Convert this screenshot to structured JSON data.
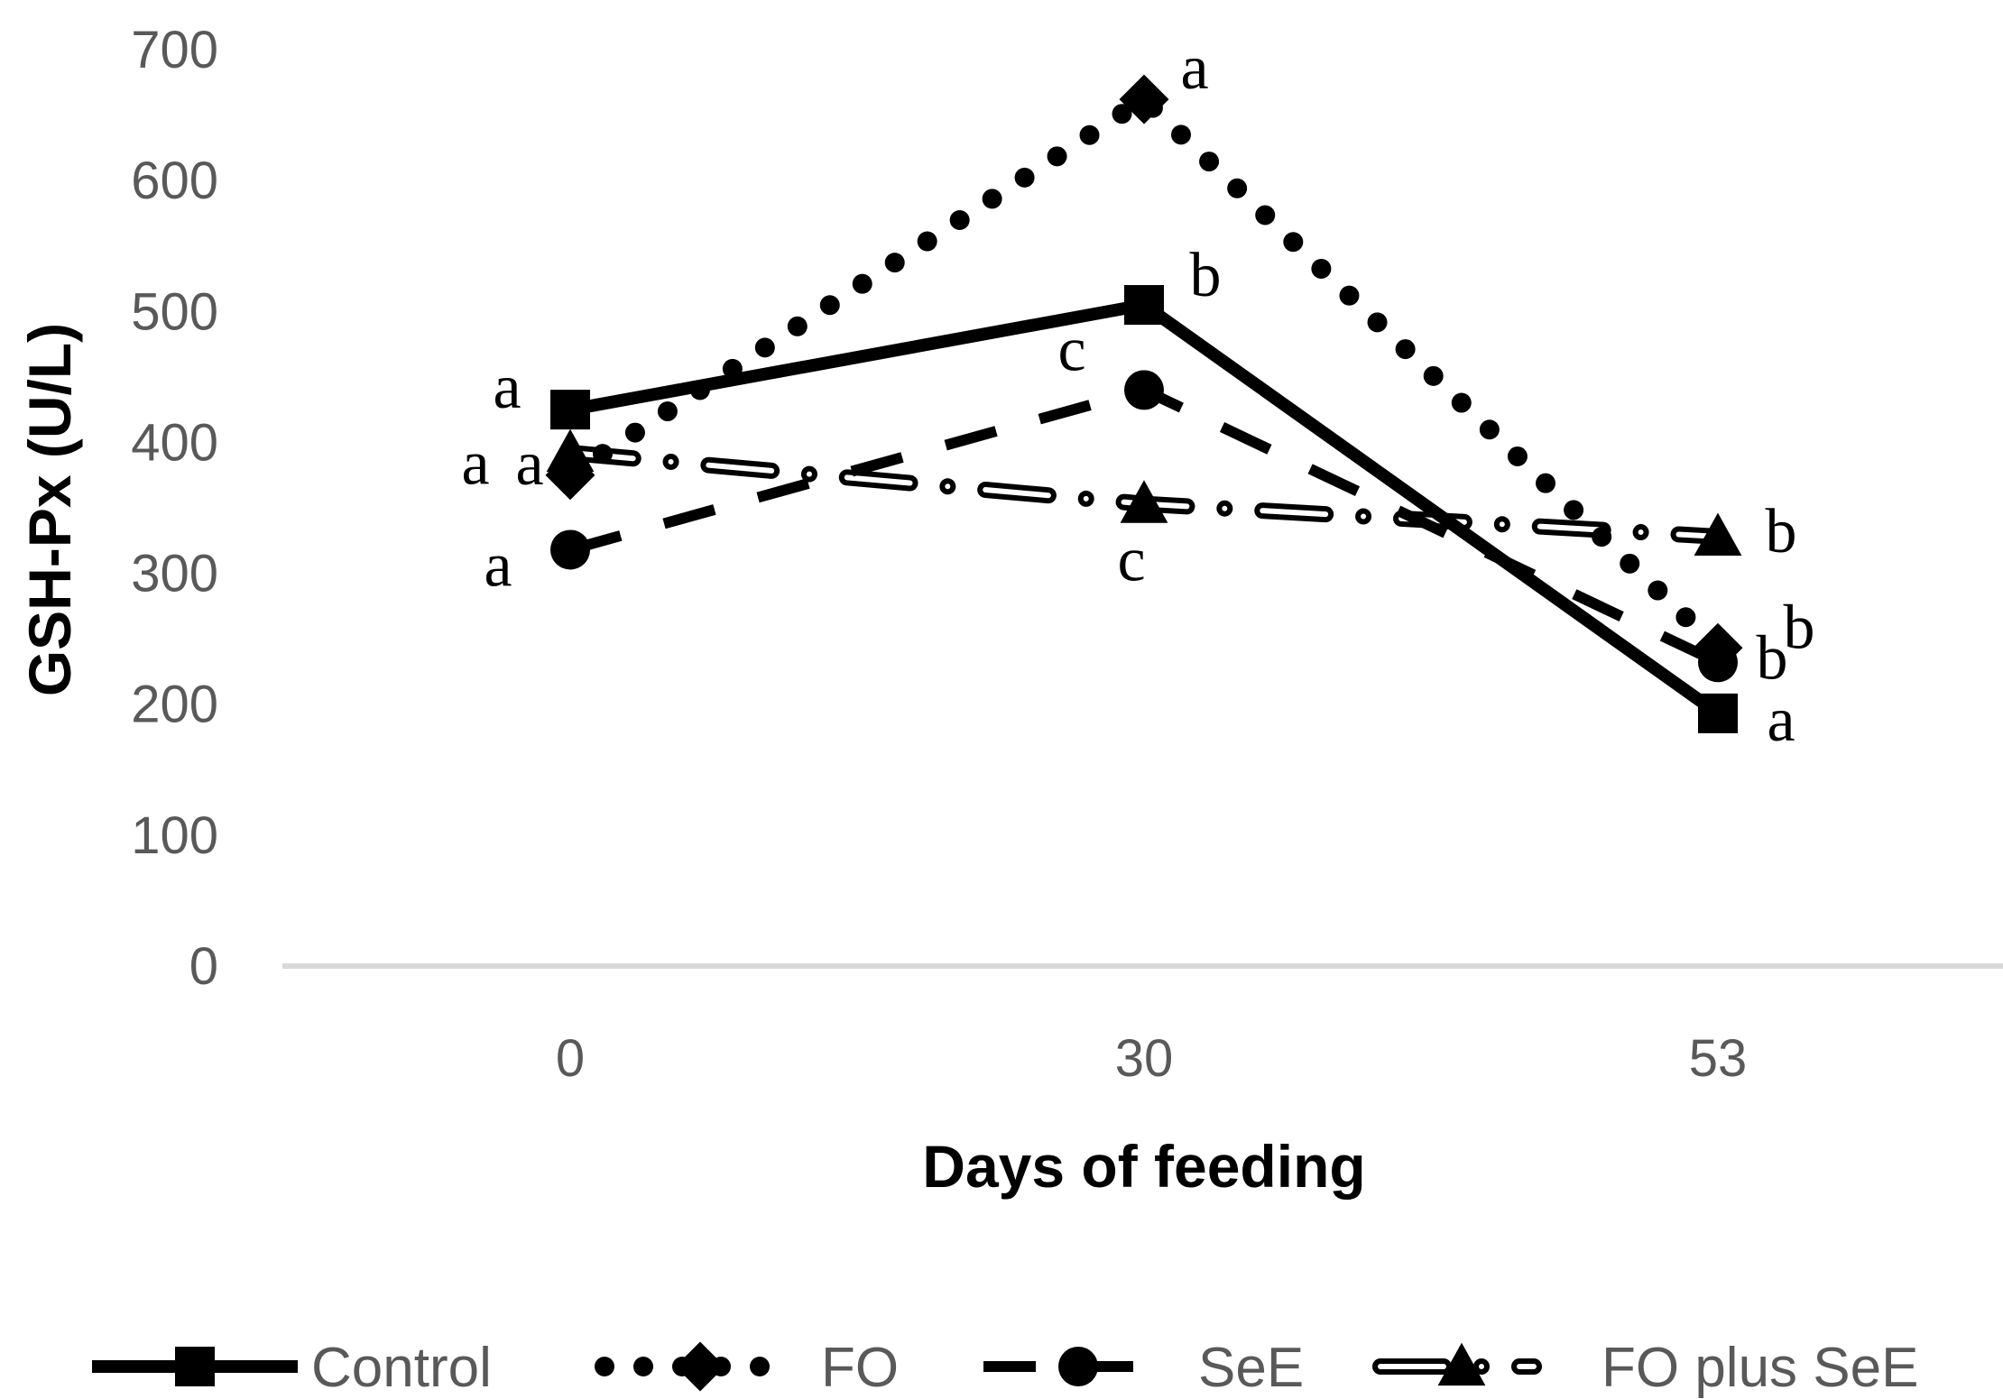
{
  "chart_data": {
    "type": "line",
    "title": "",
    "xlabel": "Days of feeding",
    "ylabel": "GSH-Px (U/L)",
    "categories": [
      "0",
      "30",
      "53"
    ],
    "ylim": [
      0,
      700
    ],
    "yticks": [
      0,
      100,
      200,
      300,
      400,
      500,
      600,
      700
    ],
    "grid": false,
    "legend_position": "bottom",
    "series": [
      {
        "name": "Control",
        "values": [
          425,
          505,
          193
        ],
        "letters": [
          "a",
          "b",
          "a"
        ],
        "line": "solid",
        "marker": "square"
      },
      {
        "name": "FO",
        "values": [
          375,
          662,
          243
        ],
        "letters": [
          "a",
          "a",
          "b"
        ],
        "line": "dotted",
        "marker": "diamond"
      },
      {
        "name": "SeE",
        "values": [
          318,
          440,
          232
        ],
        "letters": [
          "a",
          "c",
          "b"
        ],
        "line": "dashed",
        "marker": "circle"
      },
      {
        "name": "FO plus SeE",
        "values": [
          392,
          353,
          328
        ],
        "letters": [
          "a",
          "c",
          "b"
        ],
        "line": "double-dash-dot",
        "marker": "triangle"
      }
    ],
    "colors": {
      "text": "#595959",
      "series": "#000000",
      "axis": "#d9d9d9"
    }
  }
}
